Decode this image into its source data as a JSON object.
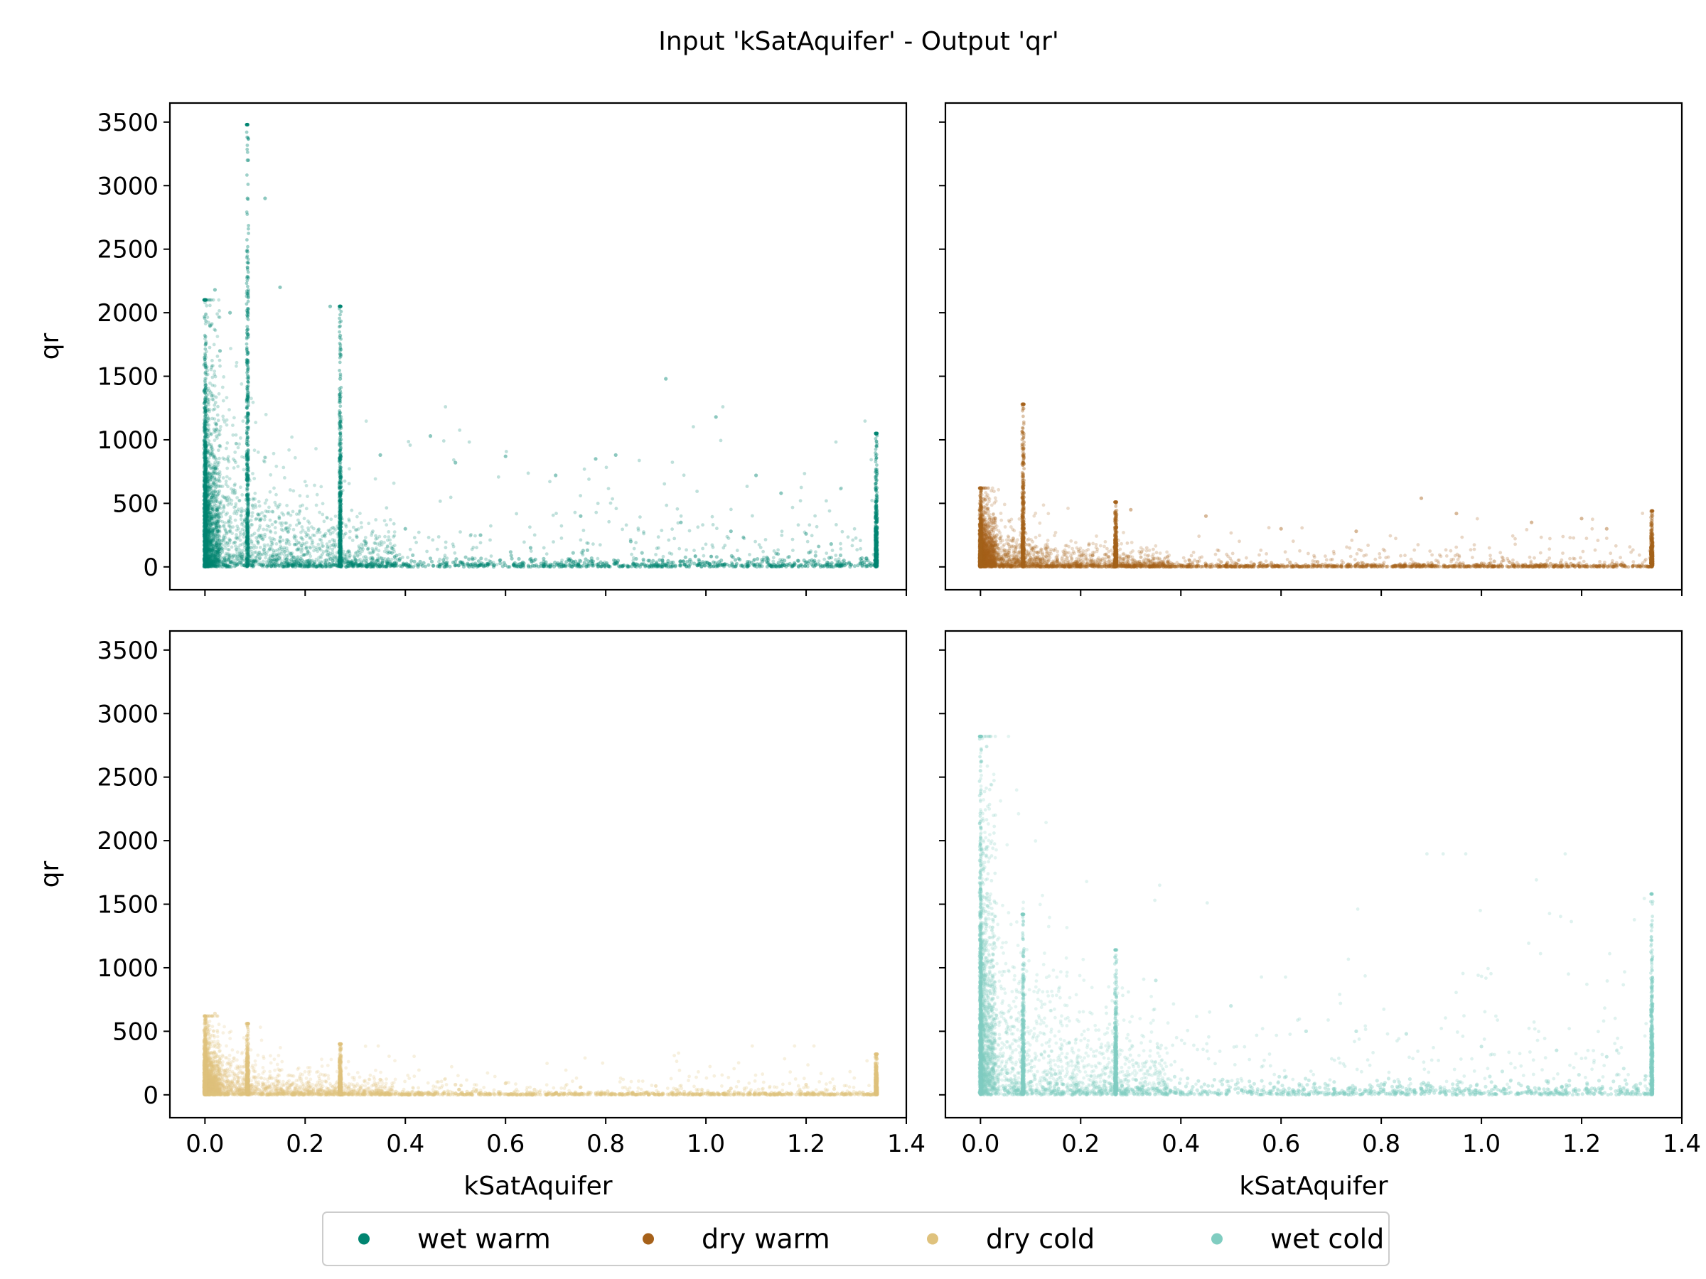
{
  "title": "Input 'kSatAquifer' - Output 'qr'",
  "chart_data": {
    "type": "scatter",
    "title": "Input 'kSatAquifer' - Output 'qr'",
    "xlabel": "kSatAquifer",
    "ylabel": "qr",
    "xlim": [
      -0.07,
      1.4
    ],
    "ylim": [
      -180,
      3650
    ],
    "x_ticks": [
      "0.0",
      "0.2",
      "0.4",
      "0.6",
      "0.8",
      "1.0",
      "1.2",
      "1.4"
    ],
    "y_ticks": [
      "0",
      "500",
      "1000",
      "1500",
      "2000",
      "2500",
      "3000",
      "3500"
    ],
    "grid": false,
    "legend_position": "bottom-center",
    "panels": [
      {
        "name": "wet warm",
        "color": "#018571",
        "position": "top-left",
        "x_tick_labels": false,
        "y_tick_labels": true,
        "xlabel": "",
        "ylabel": "qr",
        "point_alpha": 0.25,
        "summary": {
          "x_min": 0.0,
          "x_max": 1.34,
          "y_max": 3480,
          "dense_x_columns": [
            0.0,
            0.085,
            0.27,
            1.34
          ],
          "approx_column_tops": [
            2100,
            3480,
            2050,
            1050
          ]
        },
        "points": [
          [
            0.0,
            2100
          ],
          [
            0.01,
            1900
          ],
          [
            0.02,
            2180
          ],
          [
            0.03,
            1700
          ],
          [
            0.05,
            2000
          ],
          [
            0.085,
            3480
          ],
          [
            0.085,
            3200
          ],
          [
            0.085,
            2900
          ],
          [
            0.085,
            2480
          ],
          [
            0.085,
            2000
          ],
          [
            0.12,
            2900
          ],
          [
            0.15,
            2200
          ],
          [
            0.25,
            2050
          ],
          [
            0.27,
            1820
          ],
          [
            0.27,
            1480
          ],
          [
            0.35,
            880
          ],
          [
            0.45,
            1030
          ],
          [
            0.5,
            820
          ],
          [
            0.6,
            870
          ],
          [
            0.7,
            720
          ],
          [
            0.78,
            850
          ],
          [
            0.82,
            880
          ],
          [
            0.92,
            1480
          ],
          [
            1.02,
            1180
          ],
          [
            1.1,
            720
          ],
          [
            1.15,
            580
          ],
          [
            1.34,
            1050
          ],
          [
            1.34,
            750
          ],
          [
            0.4,
            300
          ],
          [
            0.55,
            250
          ],
          [
            0.65,
            150
          ],
          [
            0.75,
            400
          ],
          [
            0.85,
            200
          ],
          [
            0.95,
            350
          ],
          [
            1.05,
            280
          ],
          [
            1.2,
            260
          ],
          [
            1.25,
            180
          ]
        ]
      },
      {
        "name": "dry warm",
        "color": "#a6611a",
        "position": "top-right",
        "x_tick_labels": false,
        "y_tick_labels": false,
        "xlabel": "",
        "ylabel": "",
        "point_alpha": 0.25,
        "summary": {
          "x_min": 0.0,
          "x_max": 1.34,
          "y_max": 1280,
          "dense_x_columns": [
            0.0,
            0.085,
            0.27,
            1.34
          ],
          "approx_column_tops": [
            620,
            1280,
            510,
            440
          ]
        },
        "points": [
          [
            0.0,
            620
          ],
          [
            0.085,
            1280
          ],
          [
            0.085,
            720
          ],
          [
            0.27,
            510
          ],
          [
            0.3,
            450
          ],
          [
            0.45,
            400
          ],
          [
            0.6,
            300
          ],
          [
            0.75,
            280
          ],
          [
            0.88,
            540
          ],
          [
            0.95,
            420
          ],
          [
            1.1,
            350
          ],
          [
            1.2,
            380
          ],
          [
            1.25,
            300
          ],
          [
            1.34,
            440
          ]
        ]
      },
      {
        "name": "dry cold",
        "color": "#dfc27d",
        "position": "bottom-left",
        "x_tick_labels": true,
        "y_tick_labels": true,
        "xlabel": "kSatAquifer",
        "ylabel": "qr",
        "point_alpha": 0.25,
        "summary": {
          "x_min": 0.0,
          "x_max": 1.34,
          "y_max": 640,
          "dense_x_columns": [
            0.0,
            0.085,
            0.27,
            1.34
          ],
          "approx_column_tops": [
            620,
            560,
            400,
            320
          ]
        },
        "points": [
          [
            0.0,
            360
          ],
          [
            0.02,
            640
          ],
          [
            0.085,
            560
          ],
          [
            0.27,
            400
          ],
          [
            0.35,
            120
          ],
          [
            0.5,
            80
          ],
          [
            0.6,
            90
          ],
          [
            0.75,
            60
          ],
          [
            0.9,
            70
          ],
          [
            1.05,
            50
          ],
          [
            1.2,
            80
          ],
          [
            1.34,
            320
          ]
        ]
      },
      {
        "name": "wet cold",
        "color": "#80cdc1",
        "position": "bottom-right",
        "x_tick_labels": true,
        "y_tick_labels": false,
        "xlabel": "kSatAquifer",
        "ylabel": "",
        "point_alpha": 0.25,
        "summary": {
          "x_min": 0.0,
          "x_max": 1.34,
          "y_max": 2820,
          "dense_x_columns": [
            0.0,
            0.085,
            0.27,
            1.34
          ],
          "approx_column_tops": [
            2820,
            1420,
            1140,
            1580
          ]
        },
        "points": [
          [
            0.0,
            2820
          ],
          [
            0.0,
            2550
          ],
          [
            0.0,
            2150
          ],
          [
            0.005,
            1900
          ],
          [
            0.085,
            1420
          ],
          [
            0.27,
            1140
          ],
          [
            0.35,
            900
          ],
          [
            0.5,
            700
          ],
          [
            0.65,
            500
          ],
          [
            0.75,
            500
          ],
          [
            0.85,
            480
          ],
          [
            1.0,
            380
          ],
          [
            1.15,
            350
          ],
          [
            1.25,
            300
          ],
          [
            1.34,
            1580
          ],
          [
            1.34,
            900
          ]
        ]
      }
    ]
  },
  "legend": {
    "items": [
      {
        "label": "wet warm",
        "color": "#018571"
      },
      {
        "label": "dry warm",
        "color": "#a6611a"
      },
      {
        "label": "dry cold",
        "color": "#dfc27d"
      },
      {
        "label": "wet cold",
        "color": "#80cdc1"
      }
    ]
  }
}
